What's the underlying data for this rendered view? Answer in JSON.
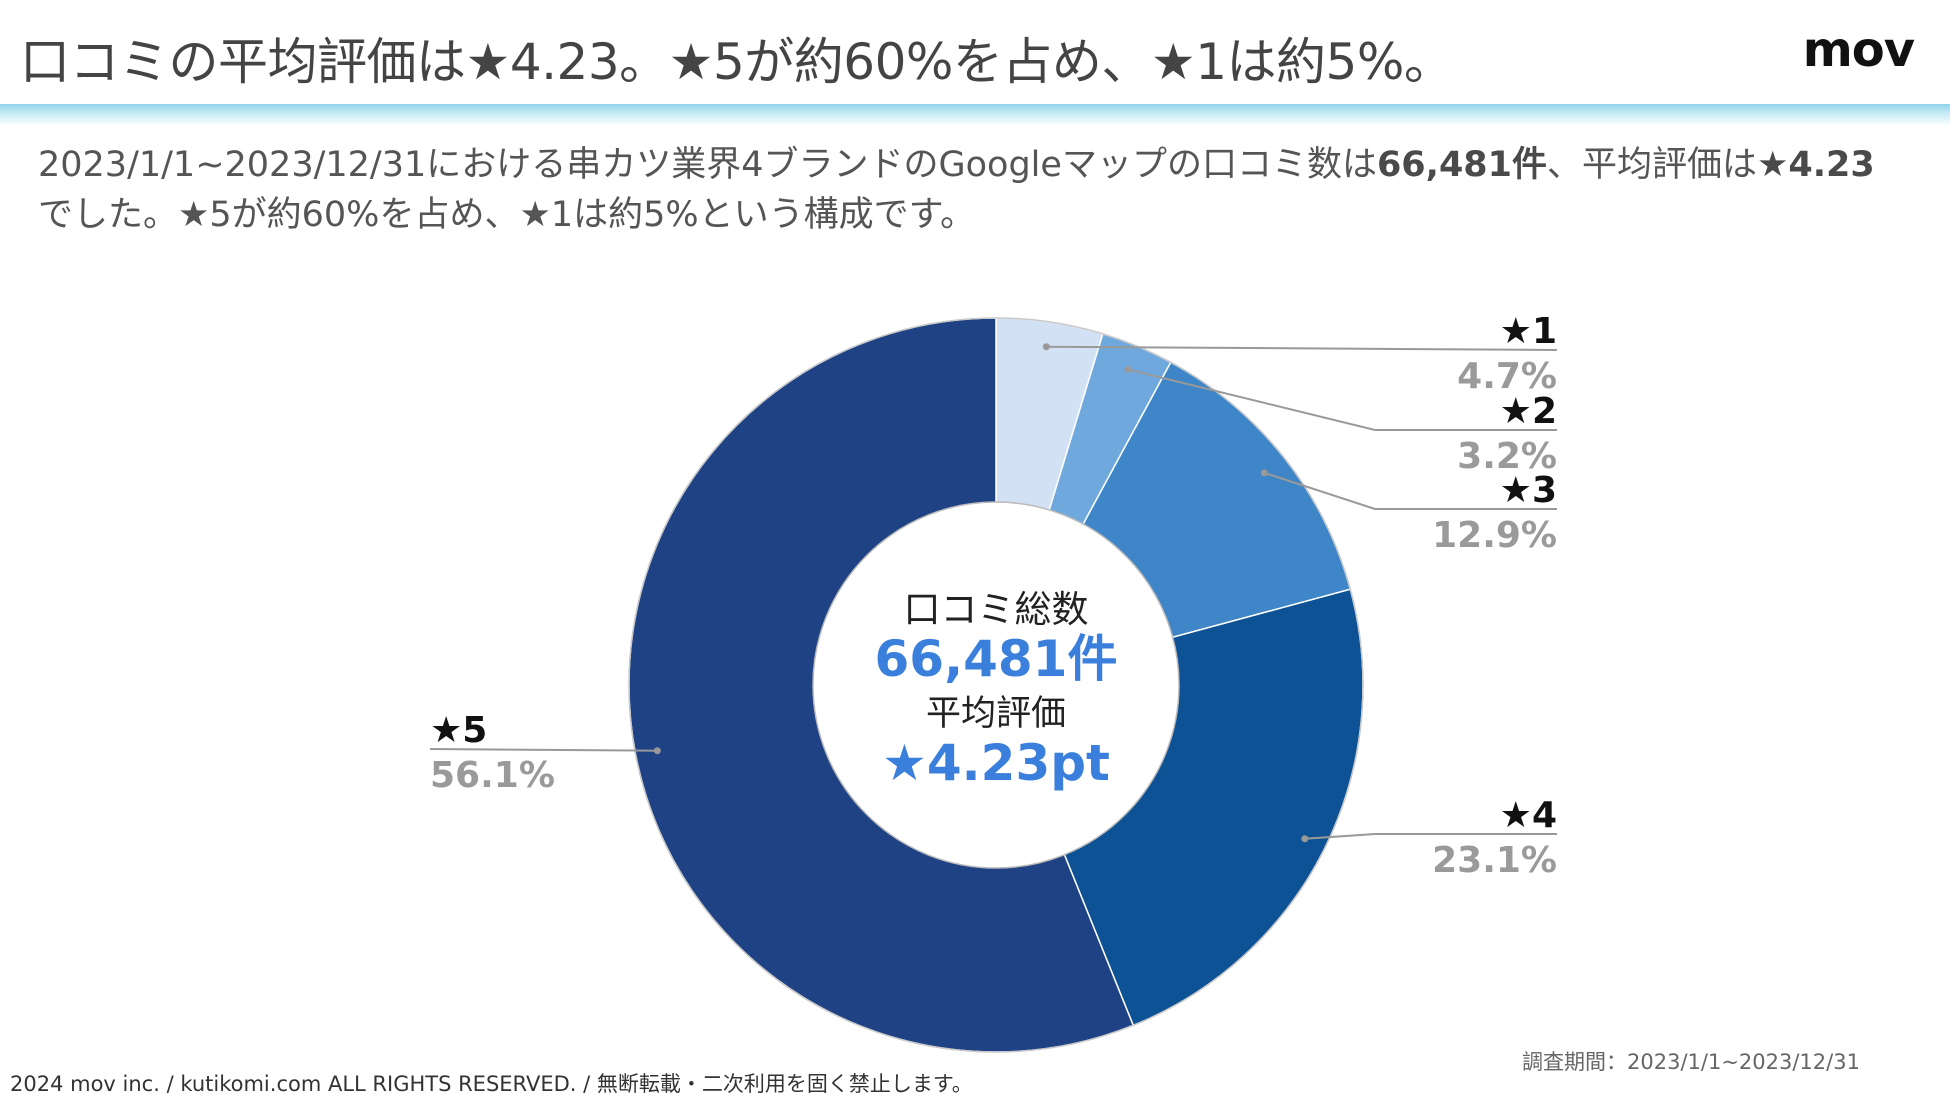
{
  "header": {
    "title": "口コミの平均評価は★4.23。★5が約60%を占め、★1は約5%。",
    "logo": "mov"
  },
  "summary": {
    "line1_pre": "2023/1/1~2023/12/31における串カツ業界4ブランドのGoogleマップの口コミ数は",
    "line1_count": "66,481件",
    "line1_mid": "、平均評価は",
    "line1_rating": "★4.23",
    "line2": "でした。★5が約60%を占め、★1は約5%という構成です。"
  },
  "center": {
    "label_total": "口コミ総数",
    "total_value": "66,481件",
    "label_avg": "平均評価",
    "avg_value": "★4.23pt"
  },
  "colors": {
    "accent": "#3b7fdc",
    "label_value": "#9a9a9a",
    "leader": "#999999"
  },
  "chart_data": {
    "type": "pie",
    "donut": true,
    "title": "",
    "categories": [
      "★1",
      "★2",
      "★3",
      "★4",
      "★5"
    ],
    "values": [
      4.7,
      3.2,
      12.9,
      23.1,
      56.1
    ],
    "value_labels": [
      "4.7%",
      "3.2%",
      "12.9%",
      "23.1%",
      "56.1%"
    ],
    "colors": [
      "#d2e2f4",
      "#6fa8dc",
      "#3f86c8",
      "#0d5294",
      "#1e4283"
    ],
    "start": "12 o'clock, clockwise"
  },
  "footer": {
    "copyright": "2024 mov inc. / kutikomi.com ALL RIGHTS RESERVED. / 無断転載・二次利用を固く禁止します。",
    "period": "調査期間：2023/1/1~2023/12/31"
  }
}
